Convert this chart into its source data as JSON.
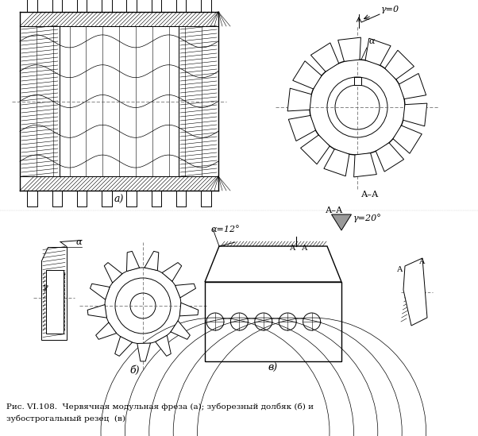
{
  "caption_line1": "Рис. VI.108.  Червячная модульная фреза (а); зуборезный долбяк (б) и",
  "caption_line2": "зубострогальный резец  (в)",
  "bg_color": "#ffffff",
  "label_a": "а)",
  "label_b": "б)",
  "label_v": "в)",
  "label_AA": "А–А",
  "label_gamma0": "γ=0",
  "label_gamma20": "γ=20°",
  "label_alpha12": "α=12°",
  "label_alpha": "α",
  "label_gamma": "γ",
  "label_A1": "А",
  "label_A2": "А"
}
